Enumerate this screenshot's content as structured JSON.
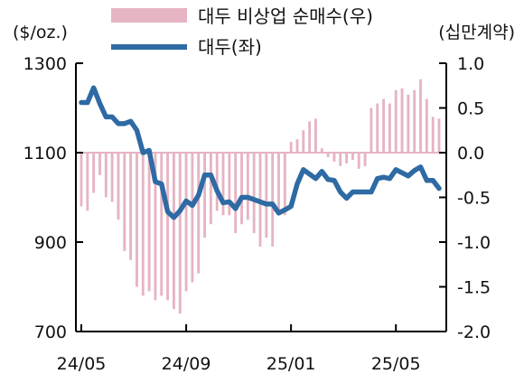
{
  "chart_data": {
    "type": "bar+line",
    "left_axis_unit": "($/oz.)",
    "right_axis_unit": "(십만계약)",
    "left_ylim": [
      700,
      1300
    ],
    "left_ticks": [
      "1300",
      "1100",
      "900",
      "700"
    ],
    "left_tick_values": [
      1300,
      1100,
      900,
      700
    ],
    "right_ylim": [
      -2.0,
      1.0
    ],
    "right_ticks": [
      "1.0",
      "0.5",
      "0.0",
      "-0.5",
      "-1.0",
      "-1.5",
      "-2.0"
    ],
    "right_tick_values": [
      1.0,
      0.5,
      0.0,
      -0.5,
      -1.0,
      -1.5,
      -2.0
    ],
    "x_ticks": [
      "24/05",
      "24/09",
      "25/01",
      "25/05"
    ],
    "x_tick_index": [
      0,
      17,
      34,
      51
    ],
    "legend_position": "top-center",
    "series": [
      {
        "name": "대두 비상업 순매수(우)",
        "kind": "bar",
        "axis": "right",
        "color": "#e6b4c3",
        "values": [
          -0.6,
          -0.65,
          -0.45,
          -0.25,
          -0.5,
          -0.55,
          -0.75,
          -1.1,
          -1.2,
          -1.5,
          -1.6,
          -1.55,
          -1.65,
          -1.6,
          -1.65,
          -1.75,
          -1.8,
          -1.55,
          -1.45,
          -1.35,
          -0.95,
          -0.8,
          -0.65,
          -0.7,
          -0.7,
          -0.9,
          -0.8,
          -0.75,
          -0.9,
          -1.05,
          -0.95,
          -1.05,
          -0.7,
          -0.7,
          0.12,
          0.15,
          0.25,
          0.35,
          0.38,
          0.05,
          -0.05,
          -0.1,
          -0.15,
          -0.12,
          -0.08,
          -0.18,
          -0.15,
          0.5,
          0.55,
          0.6,
          0.55,
          0.7,
          0.72,
          0.65,
          0.7,
          0.82,
          0.6,
          0.4,
          0.38
        ]
      },
      {
        "name": "대두(좌)",
        "kind": "line",
        "axis": "left",
        "color": "#2e6aa3",
        "values": [
          1212,
          1212,
          1245,
          1210,
          1180,
          1180,
          1165,
          1165,
          1170,
          1150,
          1100,
          1105,
          1035,
          1030,
          968,
          955,
          970,
          992,
          982,
          1005,
          1050,
          1050,
          1015,
          988,
          990,
          975,
          1000,
          1000,
          995,
          990,
          985,
          985,
          965,
          972,
          980,
          1030,
          1062,
          1052,
          1042,
          1058,
          1040,
          1038,
          1012,
          998,
          1012,
          1012,
          1012,
          1012,
          1042,
          1045,
          1042,
          1062,
          1055,
          1048,
          1060,
          1068,
          1038,
          1038,
          1020
        ]
      }
    ]
  }
}
